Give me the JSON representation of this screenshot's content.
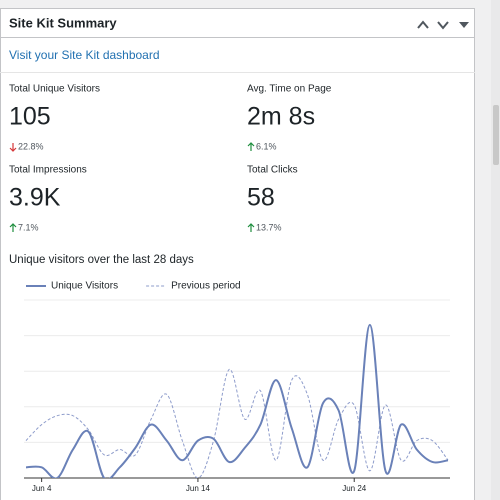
{
  "widget": {
    "title": "Site Kit Summary",
    "link": "Visit your Site Kit dashboard",
    "metrics": [
      {
        "label": "Total Unique Visitors",
        "value": "105",
        "change": "22.8%",
        "direction": "down"
      },
      {
        "label": "Avg. Time on Page",
        "value": "2m 8s",
        "change": "6.1%",
        "direction": "up"
      },
      {
        "label": "Total Impressions",
        "value": "3.9K",
        "change": "7.1%",
        "direction": "up"
      },
      {
        "label": "Total Clicks",
        "value": "58",
        "change": "13.7%",
        "direction": "up"
      }
    ]
  },
  "chart_data": {
    "type": "line",
    "title": "Unique visitors over the last 28 days",
    "categories": [
      null,
      "Jun 4",
      null,
      null,
      null,
      null,
      null,
      null,
      null,
      null,
      null,
      "Jun 14",
      null,
      null,
      null,
      null,
      null,
      null,
      null,
      null,
      null,
      "Jun 24",
      null,
      null,
      null,
      null,
      null,
      null
    ],
    "series": [
      {
        "name": "Unique Visitors",
        "color": "#6a81b8",
        "dashed": false,
        "values": [
          0.6,
          0.6,
          0,
          1.6,
          2.6,
          0,
          0.6,
          1.7,
          3.0,
          2.1,
          1.0,
          2.1,
          2.2,
          0.9,
          1.7,
          3.0,
          5.5,
          2.8,
          0.6,
          4.2,
          3.8,
          0.4,
          8.6,
          0.4,
          3.0,
          1.6,
          0.9,
          1.0
        ]
      },
      {
        "name": "Previous period",
        "color": "#8e9ccb",
        "dashed": true,
        "values": [
          2.1,
          3.0,
          3.5,
          3.5,
          2.7,
          1.3,
          1.6,
          1.3,
          3.3,
          4.7,
          2.1,
          0,
          2.1,
          6.1,
          3.3,
          4.9,
          1.0,
          5.5,
          4.7,
          1.0,
          3.3,
          4.1,
          0.4,
          4.1,
          1.0,
          2.1,
          2.1,
          1.0
        ]
      }
    ],
    "ylim": [
      0,
      10
    ],
    "yticks": [
      0,
      2,
      4,
      6,
      8,
      10
    ],
    "grid": true,
    "legend": "top"
  }
}
